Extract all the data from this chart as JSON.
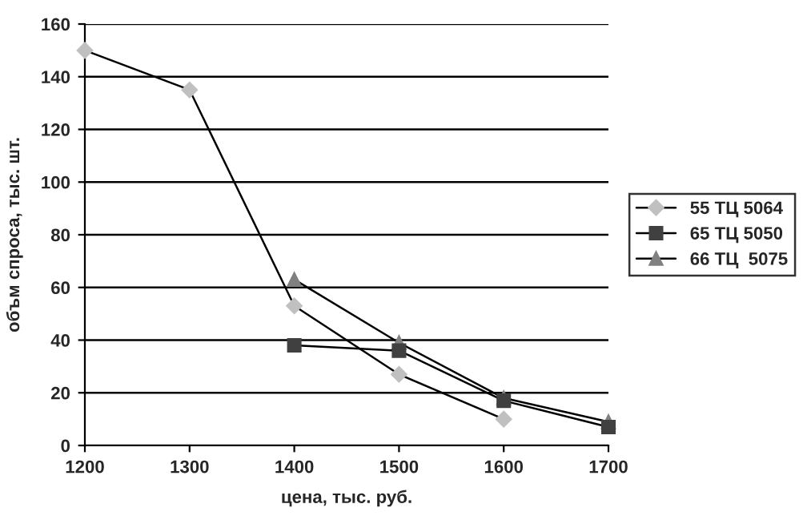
{
  "chart_data": {
    "type": "line",
    "xlabel": "цена, тыс. руб.",
    "ylabel": "объм спроса, тыс. шт.",
    "x": [
      1200,
      1300,
      1400,
      1500,
      1600,
      1700
    ],
    "series": [
      {
        "name": "55 ТЦ 5064",
        "color": "#c0c0c0",
        "marker": "diamond",
        "values": [
          150,
          135,
          53,
          27,
          10,
          null
        ]
      },
      {
        "name": "65 ТЦ 5050",
        "color": "#404040",
        "marker": "square",
        "values": [
          null,
          null,
          38,
          36,
          17,
          7
        ]
      },
      {
        "name": "66 ТЦ  5075",
        "color": "#808080",
        "marker": "triangle",
        "values": [
          null,
          null,
          63,
          39,
          18,
          9
        ]
      }
    ],
    "xlim": [
      1200,
      1700
    ],
    "xticks": [
      1200,
      1300,
      1400,
      1500,
      1600,
      1700
    ],
    "ylim": [
      0,
      160
    ],
    "yticks": [
      0,
      20,
      40,
      60,
      80,
      100,
      120,
      140,
      160
    ],
    "grid": "y",
    "legend": "right",
    "line_style": "solid"
  }
}
